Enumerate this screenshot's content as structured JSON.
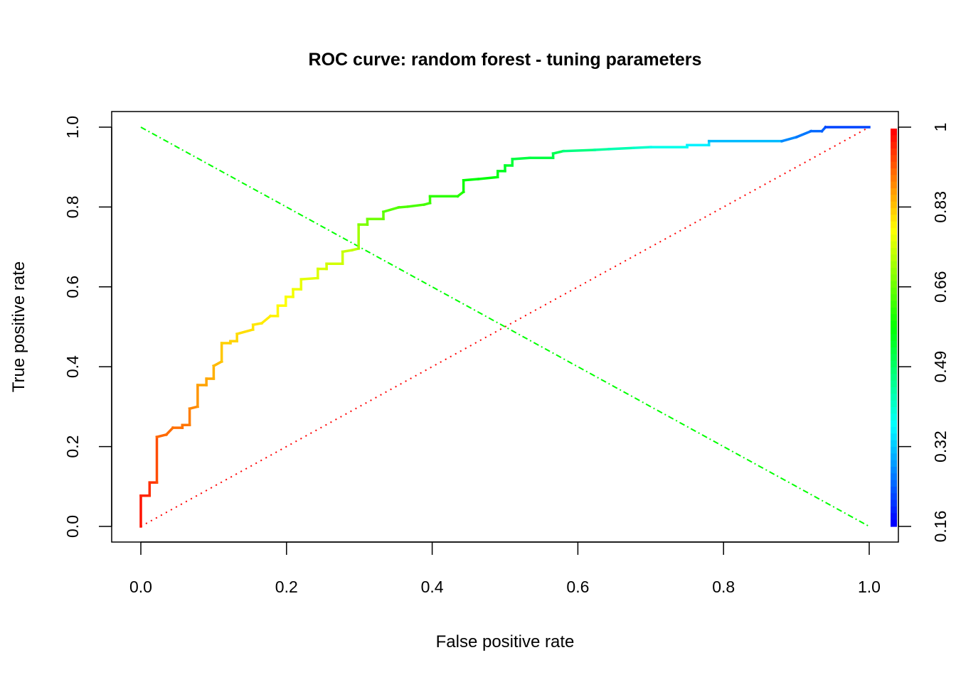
{
  "chart_data": {
    "type": "line",
    "title": "ROC curve: random forest - tuning parameters",
    "xlabel": "False positive rate",
    "ylabel": "True positive rate",
    "xlim": [
      0,
      1
    ],
    "ylim": [
      0,
      1
    ],
    "x_ticks": [
      "0.0",
      "0.2",
      "0.4",
      "0.6",
      "0.8",
      "1.0"
    ],
    "y_ticks": [
      "0.0",
      "0.2",
      "0.4",
      "0.6",
      "0.8",
      "1.0"
    ],
    "grid": false,
    "colorbar": {
      "label_ticks": [
        "0.16",
        "0.32",
        "0.49",
        "0.66",
        "0.83",
        "1"
      ],
      "range": [
        0.16,
        1
      ],
      "colormap": "rainbow",
      "placement": "right"
    },
    "series": [
      {
        "name": "ROC curve",
        "colored_by": "cutoff",
        "points": [
          [
            0,
            0
          ],
          [
            0,
            0.077
          ],
          [
            0.012,
            0.077
          ],
          [
            0.012,
            0.11
          ],
          [
            0.022,
            0.11
          ],
          [
            0.022,
            0.224
          ],
          [
            0.035,
            0.23
          ],
          [
            0.044,
            0.247
          ],
          [
            0.057,
            0.247
          ],
          [
            0.057,
            0.254
          ],
          [
            0.067,
            0.254
          ],
          [
            0.067,
            0.295
          ],
          [
            0.078,
            0.3
          ],
          [
            0.078,
            0.354
          ],
          [
            0.09,
            0.354
          ],
          [
            0.09,
            0.37
          ],
          [
            0.1,
            0.37
          ],
          [
            0.1,
            0.402
          ],
          [
            0.111,
            0.413
          ],
          [
            0.111,
            0.459
          ],
          [
            0.123,
            0.459
          ],
          [
            0.123,
            0.464
          ],
          [
            0.132,
            0.464
          ],
          [
            0.132,
            0.482
          ],
          [
            0.154,
            0.493
          ],
          [
            0.154,
            0.505
          ],
          [
            0.166,
            0.509
          ],
          [
            0.178,
            0.527
          ],
          [
            0.188,
            0.527
          ],
          [
            0.188,
            0.553
          ],
          [
            0.199,
            0.553
          ],
          [
            0.199,
            0.575
          ],
          [
            0.209,
            0.575
          ],
          [
            0.209,
            0.594
          ],
          [
            0.22,
            0.594
          ],
          [
            0.22,
            0.619
          ],
          [
            0.243,
            0.622
          ],
          [
            0.243,
            0.645
          ],
          [
            0.255,
            0.645
          ],
          [
            0.255,
            0.658
          ],
          [
            0.277,
            0.658
          ],
          [
            0.277,
            0.688
          ],
          [
            0.29,
            0.692
          ],
          [
            0.299,
            0.696
          ],
          [
            0.299,
            0.756
          ],
          [
            0.311,
            0.756
          ],
          [
            0.311,
            0.77
          ],
          [
            0.333,
            0.77
          ],
          [
            0.333,
            0.788
          ],
          [
            0.354,
            0.799
          ],
          [
            0.367,
            0.801
          ],
          [
            0.389,
            0.806
          ],
          [
            0.397,
            0.81
          ],
          [
            0.397,
            0.827
          ],
          [
            0.435,
            0.827
          ],
          [
            0.443,
            0.838
          ],
          [
            0.443,
            0.867
          ],
          [
            0.463,
            0.87
          ],
          [
            0.49,
            0.875
          ],
          [
            0.49,
            0.89
          ],
          [
            0.5,
            0.89
          ],
          [
            0.5,
            0.904
          ],
          [
            0.51,
            0.904
          ],
          [
            0.51,
            0.92
          ],
          [
            0.534,
            0.923
          ],
          [
            0.566,
            0.923
          ],
          [
            0.566,
            0.934
          ],
          [
            0.58,
            0.94
          ],
          [
            0.623,
            0.943
          ],
          [
            0.643,
            0.945
          ],
          [
            0.676,
            0.948
          ],
          [
            0.7,
            0.95
          ],
          [
            0.75,
            0.95
          ],
          [
            0.75,
            0.955
          ],
          [
            0.78,
            0.955
          ],
          [
            0.78,
            0.965
          ],
          [
            0.88,
            0.965
          ],
          [
            0.9,
            0.975
          ],
          [
            0.92,
            0.99
          ],
          [
            0.935,
            0.99
          ],
          [
            0.94,
            1.0
          ],
          [
            1.0,
            1.0
          ]
        ]
      },
      {
        "name": "chance diagonal",
        "style": "dotted",
        "color": "#ff0000",
        "points": [
          [
            0,
            0
          ],
          [
            1,
            1
          ]
        ]
      },
      {
        "name": "anti-diagonal",
        "style": "dashdot",
        "color": "#00ff00",
        "points": [
          [
            0,
            1
          ],
          [
            1,
            0
          ]
        ]
      }
    ]
  }
}
